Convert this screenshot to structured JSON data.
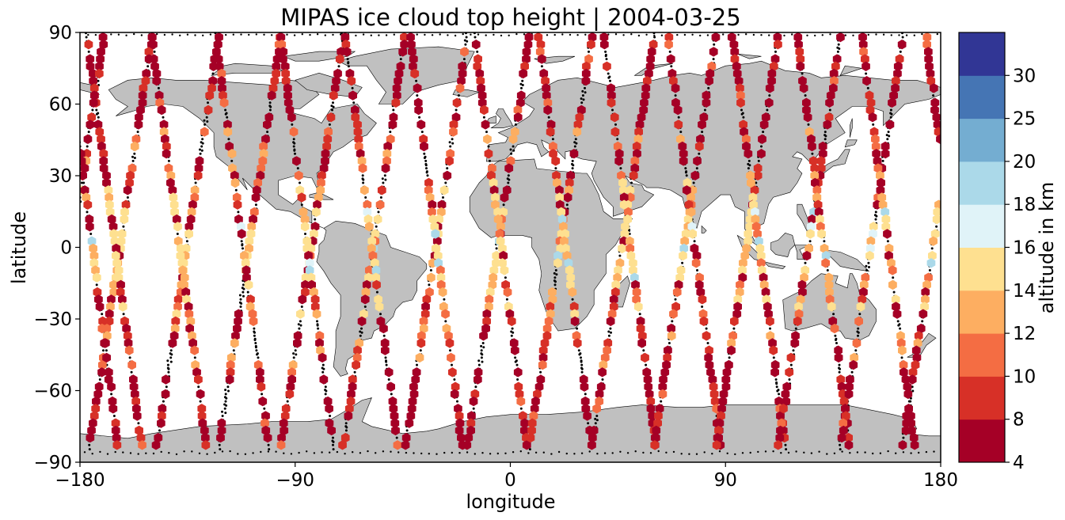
{
  "title": "MIPAS ice cloud top height | 2004-03-25",
  "colors": {
    "land": "#c0c0c0",
    "ocean": "#ffffff",
    "coast": "#000000",
    "no_cloud_marker": "#000000"
  },
  "chart_data": {
    "type": "scatter",
    "title": "MIPAS ice cloud top height | 2004-03-25",
    "xlabel": "longitude",
    "ylabel": "latitude",
    "xlim": [
      -180,
      180
    ],
    "ylim": [
      -90,
      90
    ],
    "xticks": [
      -180,
      -90,
      0,
      90,
      180
    ],
    "yticks": [
      -90,
      -60,
      -30,
      0,
      30,
      60,
      90
    ],
    "xtick_labels": [
      "−180",
      "−90",
      "0",
      "90",
      "180"
    ],
    "ytick_labels": [
      "−90",
      "−60",
      "−30",
      "0",
      "30",
      "60",
      "90"
    ],
    "projection": "PlateCarree",
    "marker": "hexagon",
    "colorbar": {
      "label": "altitude in km",
      "bounds": [
        4,
        8,
        10,
        12,
        14,
        16,
        18,
        20,
        25,
        30
      ],
      "tick_labels": [
        "4",
        "8",
        "10",
        "12",
        "14",
        "16",
        "18",
        "20",
        "25",
        "30"
      ],
      "colors": [
        "#a50026",
        "#d73027",
        "#f46d43",
        "#fdae61",
        "#fee090",
        "#e0f3f8",
        "#abd9e9",
        "#74add1",
        "#4575b4",
        "#313695"
      ],
      "colormap": "RdYlBu_r (discrete)"
    },
    "tracks": [
      {
        "lon_north": -150,
        "lon_south": -176,
        "direction": "desc"
      },
      {
        "lon_north": -177,
        "lon_south": -154,
        "direction": "asc"
      },
      {
        "lon_north": -122,
        "lon_south": -148,
        "direction": "desc"
      },
      {
        "lon_north": -150,
        "lon_south": -127,
        "direction": "asc"
      },
      {
        "lon_north": -96,
        "lon_south": -122,
        "direction": "desc"
      },
      {
        "lon_north": -123,
        "lon_south": -101,
        "direction": "asc"
      },
      {
        "lon_north": -70,
        "lon_south": -96,
        "direction": "desc"
      },
      {
        "lon_north": -96,
        "lon_south": -74,
        "direction": "asc"
      },
      {
        "lon_north": -44,
        "lon_south": -70,
        "direction": "desc"
      },
      {
        "lon_north": -69,
        "lon_south": -47,
        "direction": "asc"
      },
      {
        "lon_north": -18,
        "lon_south": -44,
        "direction": "desc"
      },
      {
        "lon_north": -42,
        "lon_south": -20,
        "direction": "asc"
      },
      {
        "lon_north": 8,
        "lon_south": -18,
        "direction": "desc"
      },
      {
        "lon_north": -15,
        "lon_south": 7,
        "direction": "asc"
      },
      {
        "lon_north": 34,
        "lon_south": 8,
        "direction": "desc"
      },
      {
        "lon_north": 12,
        "lon_south": 34,
        "direction": "asc"
      },
      {
        "lon_north": 60,
        "lon_south": 34,
        "direction": "desc"
      },
      {
        "lon_north": 39,
        "lon_south": 61,
        "direction": "asc"
      },
      {
        "lon_north": 86,
        "lon_south": 60,
        "direction": "desc"
      },
      {
        "lon_north": 66,
        "lon_south": 88,
        "direction": "asc"
      },
      {
        "lon_north": 112,
        "lon_south": 86,
        "direction": "desc"
      },
      {
        "lon_north": 93,
        "lon_south": 115,
        "direction": "asc"
      },
      {
        "lon_north": 138,
        "lon_south": 112,
        "direction": "desc"
      },
      {
        "lon_north": 120,
        "lon_south": 142,
        "direction": "asc"
      },
      {
        "lon_north": 164,
        "lon_south": 138,
        "direction": "desc"
      },
      {
        "lon_north": 147,
        "lon_south": 169,
        "direction": "asc"
      },
      {
        "lon_north": 190,
        "lon_south": 164,
        "direction": "desc"
      },
      {
        "lon_north": 174,
        "lon_south": 196,
        "direction": "asc"
      }
    ]
  }
}
